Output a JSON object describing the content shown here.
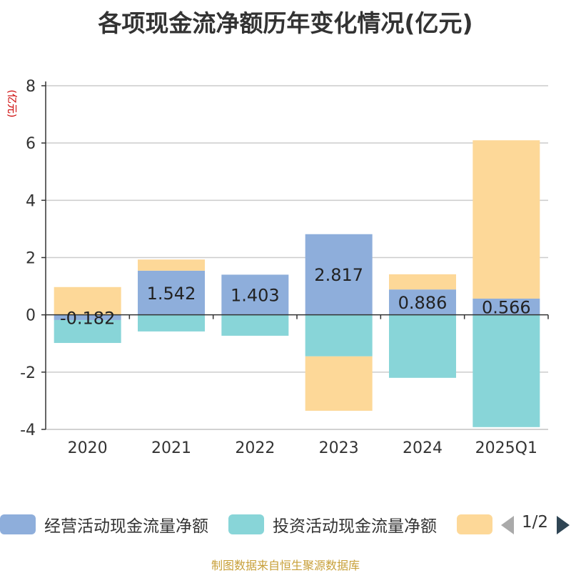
{
  "title": "各项现金流净额历年变化情况(亿元)",
  "y_unit": "(亿元)",
  "source": "制图数据来自恒生聚源数据库",
  "legend": {
    "items": [
      {
        "label": "经营活动现金流量净额",
        "color": "#8eaedb"
      },
      {
        "label": "投资活动现金流量净额",
        "color": "#88d5d8"
      },
      {
        "label": "",
        "color": "#fdd898"
      }
    ],
    "page": "1/2"
  },
  "chart_data": {
    "type": "bar",
    "stacked": true,
    "categories": [
      "2020",
      "2021",
      "2022",
      "2023",
      "2024",
      "2025Q1"
    ],
    "series": [
      {
        "name": "经营活动现金流量净额",
        "color": "#8eaedb",
        "values": [
          -0.182,
          1.542,
          1.403,
          2.817,
          0.886,
          0.566
        ],
        "labels": [
          "-0.182",
          "1.542",
          "1.403",
          "2.817",
          "0.886",
          "0.566"
        ]
      },
      {
        "name": "投资活动现金流量净额",
        "color": "#88d5d8",
        "values": [
          -0.8,
          -0.58,
          -0.73,
          -1.45,
          -2.2,
          -3.92
        ]
      },
      {
        "color": "#fdd898",
        "values": [
          0.97,
          0.39,
          0.0,
          -1.9,
          0.53,
          5.53
        ]
      }
    ],
    "yticks": [
      8,
      6,
      4,
      2,
      0,
      -2,
      -4
    ],
    "ylim": [
      -4,
      8
    ],
    "grid": true
  }
}
